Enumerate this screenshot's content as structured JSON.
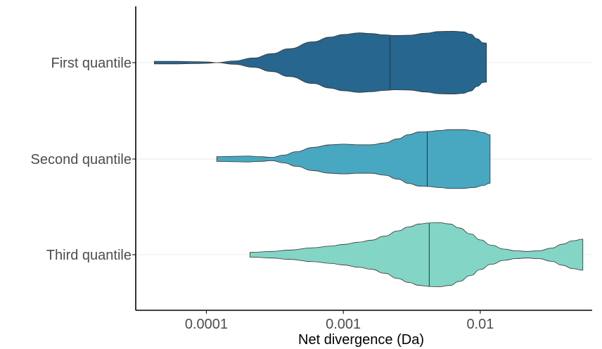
{
  "chart_data": {
    "type": "violin",
    "title": "",
    "xlabel": "Net divergence (Da)",
    "ylabel": "",
    "x_scale": "log10",
    "xlim": [
      3.05e-05,
      0.0656
    ],
    "x_ticks": [
      0.0001,
      0.001,
      0.01
    ],
    "x_tick_labels": [
      "0.0001",
      "0.001",
      "0.01"
    ],
    "categories": [
      "First quantile",
      "Second quantile",
      "Third quantile"
    ],
    "grid": true,
    "legend": "none",
    "series": [
      {
        "category": "First quantile",
        "color": "#26668F",
        "min": 4.17e-05,
        "max": 0.0111,
        "median": 0.00219,
        "profile": [
          [
            4.17e-05,
            0.04
          ],
          [
            6e-05,
            0.04
          ],
          [
            8e-05,
            0.03
          ],
          [
            0.0001,
            0.02
          ],
          [
            0.00012,
            0.0
          ],
          [
            0.00016,
            0.05
          ],
          [
            0.00022,
            0.14
          ],
          [
            0.0003,
            0.27
          ],
          [
            0.0004,
            0.42
          ],
          [
            0.0006,
            0.63
          ],
          [
            0.0008,
            0.77
          ],
          [
            0.001,
            0.85
          ],
          [
            0.0013,
            0.9
          ],
          [
            0.0016,
            0.88
          ],
          [
            0.002,
            0.84
          ],
          [
            0.0024,
            0.82
          ],
          [
            0.003,
            0.83
          ],
          [
            0.004,
            0.89
          ],
          [
            0.005,
            0.94
          ],
          [
            0.0063,
            0.95
          ],
          [
            0.0075,
            0.93
          ],
          [
            0.0085,
            0.86
          ],
          [
            0.0095,
            0.72
          ],
          [
            0.0105,
            0.6
          ],
          [
            0.0111,
            0.59
          ]
        ]
      },
      {
        "category": "Second quantile",
        "color": "#48A7C1",
        "min": 0.000119,
        "max": 0.0118,
        "median": 0.0041,
        "profile": [
          [
            0.000119,
            0.07
          ],
          [
            0.00015,
            0.08
          ],
          [
            0.0002,
            0.09
          ],
          [
            0.00025,
            0.07
          ],
          [
            0.0003,
            0.05
          ],
          [
            0.00037,
            0.12
          ],
          [
            0.00045,
            0.22
          ],
          [
            0.0006,
            0.35
          ],
          [
            0.0008,
            0.43
          ],
          [
            0.001,
            0.45
          ],
          [
            0.0013,
            0.43
          ],
          [
            0.0016,
            0.43
          ],
          [
            0.002,
            0.49
          ],
          [
            0.0025,
            0.61
          ],
          [
            0.003,
            0.74
          ],
          [
            0.0036,
            0.82
          ],
          [
            0.0041,
            0.83
          ],
          [
            0.005,
            0.86
          ],
          [
            0.006,
            0.89
          ],
          [
            0.0075,
            0.89
          ],
          [
            0.009,
            0.86
          ],
          [
            0.0105,
            0.8
          ],
          [
            0.0118,
            0.73
          ]
        ]
      },
      {
        "category": "Third quantile",
        "color": "#83D5C6",
        "min": 0.000208,
        "max": 0.0561,
        "median": 0.00424,
        "profile": [
          [
            0.000208,
            0.07
          ],
          [
            0.0003,
            0.1
          ],
          [
            0.0004,
            0.14
          ],
          [
            0.0006,
            0.21
          ],
          [
            0.0008,
            0.26
          ],
          [
            0.001,
            0.31
          ],
          [
            0.0013,
            0.38
          ],
          [
            0.0016,
            0.44
          ],
          [
            0.002,
            0.56
          ],
          [
            0.0025,
            0.72
          ],
          [
            0.003,
            0.84
          ],
          [
            0.0036,
            0.93
          ],
          [
            0.0042,
            0.96
          ],
          [
            0.005,
            0.97
          ],
          [
            0.006,
            0.93
          ],
          [
            0.007,
            0.81
          ],
          [
            0.0085,
            0.63
          ],
          [
            0.01,
            0.45
          ],
          [
            0.012,
            0.29
          ],
          [
            0.015,
            0.17
          ],
          [
            0.018,
            0.12
          ],
          [
            0.022,
            0.1
          ],
          [
            0.027,
            0.12
          ],
          [
            0.033,
            0.2
          ],
          [
            0.04,
            0.32
          ],
          [
            0.047,
            0.42
          ],
          [
            0.0561,
            0.47
          ]
        ]
      }
    ]
  },
  "colors": {
    "outline": "#333333",
    "grid": "#ebebeb",
    "axis": "#000000"
  }
}
